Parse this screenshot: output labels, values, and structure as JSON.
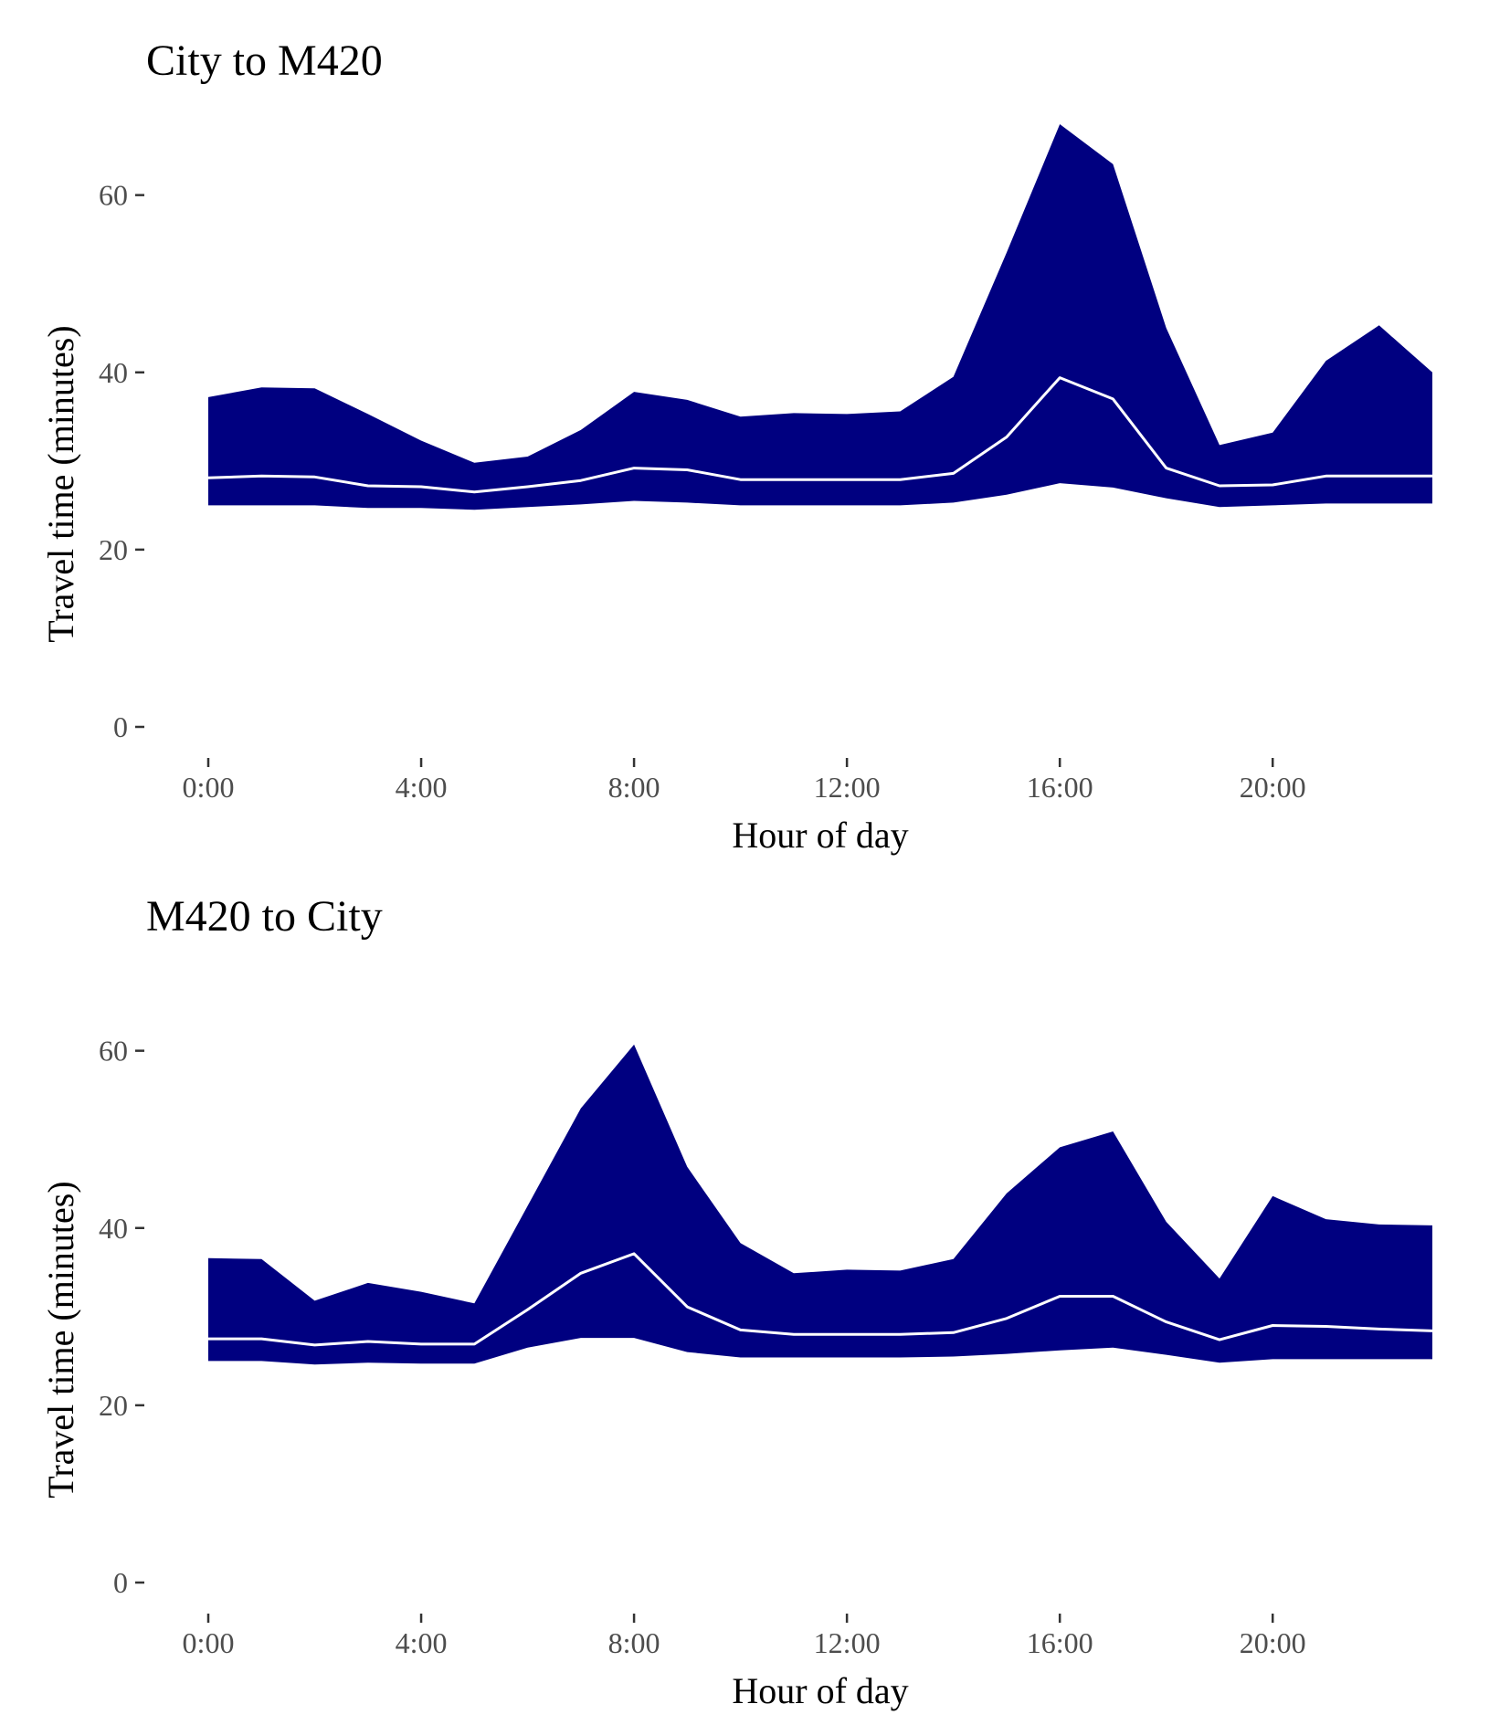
{
  "colors": {
    "band": "#000080",
    "median_line": "#ffffff",
    "tick_text": "#4d4d4d"
  },
  "chart_data": [
    {
      "type": "area",
      "title": "City to M420",
      "xlabel": "Hour of day",
      "ylabel": "Travel time (minutes)",
      "xlim": [
        0,
        23
      ],
      "ylim": [
        0,
        68
      ],
      "grid": false,
      "x": [
        0,
        1,
        2,
        3,
        4,
        5,
        6,
        7,
        8,
        9,
        10,
        11,
        12,
        13,
        14,
        15,
        16,
        17,
        18,
        19,
        20,
        21,
        22,
        23
      ],
      "x_ticks": [
        0,
        4,
        8,
        12,
        16,
        20
      ],
      "x_tick_labels": [
        "0:00",
        "4:00",
        "8:00",
        "12:00",
        "16:00",
        "20:00"
      ],
      "y_ticks": [
        0,
        20,
        40,
        60
      ],
      "y_tick_labels": [
        "0",
        "20",
        "40",
        "60"
      ],
      "series": [
        {
          "role": "lower",
          "values": [
            25.0,
            25.0,
            25.0,
            24.7,
            24.7,
            24.5,
            24.8,
            25.1,
            25.5,
            25.3,
            25.0,
            25.0,
            25.0,
            25.0,
            25.3,
            26.2,
            27.5,
            27.0,
            25.8,
            24.8,
            25.0,
            25.2,
            25.2,
            25.2
          ]
        },
        {
          "role": "upper",
          "values": [
            37.2,
            38.3,
            38.2,
            35.3,
            32.3,
            29.8,
            30.5,
            33.5,
            37.8,
            36.9,
            35.0,
            35.4,
            35.3,
            35.6,
            39.5,
            53.5,
            68.0,
            63.5,
            45.0,
            31.8,
            33.2,
            41.3,
            45.3,
            40.0
          ]
        },
        {
          "role": "median",
          "values": [
            28.1,
            28.3,
            28.2,
            27.2,
            27.1,
            26.5,
            27.1,
            27.8,
            29.2,
            29.0,
            27.9,
            27.9,
            27.9,
            27.9,
            28.6,
            32.7,
            39.4,
            37.0,
            29.2,
            27.2,
            27.3,
            28.3,
            28.3,
            28.3
          ]
        }
      ]
    },
    {
      "type": "area",
      "title": "M420 to City",
      "xlabel": "Hour of day",
      "ylabel": "Travel time (minutes)",
      "xlim": [
        0,
        23
      ],
      "ylim": [
        0,
        68
      ],
      "grid": false,
      "x": [
        0,
        1,
        2,
        3,
        4,
        5,
        6,
        7,
        8,
        9,
        10,
        11,
        12,
        13,
        14,
        15,
        16,
        17,
        18,
        19,
        20,
        21,
        22,
        23
      ],
      "x_ticks": [
        0,
        4,
        8,
        12,
        16,
        20
      ],
      "x_tick_labels": [
        "0:00",
        "4:00",
        "8:00",
        "12:00",
        "16:00",
        "20:00"
      ],
      "y_ticks": [
        0,
        20,
        40,
        60
      ],
      "y_tick_labels": [
        "0",
        "20",
        "40",
        "60"
      ],
      "series": [
        {
          "role": "lower",
          "values": [
            25.0,
            25.0,
            24.6,
            24.8,
            24.7,
            24.7,
            26.5,
            27.6,
            27.6,
            26.0,
            25.4,
            25.4,
            25.4,
            25.4,
            25.5,
            25.8,
            26.2,
            26.5,
            25.7,
            24.8,
            25.2,
            25.2,
            25.2,
            25.2
          ]
        },
        {
          "role": "upper",
          "values": [
            36.6,
            36.5,
            31.8,
            33.8,
            32.8,
            31.5,
            42.5,
            53.5,
            60.7,
            46.9,
            38.3,
            34.9,
            35.3,
            35.2,
            36.5,
            43.9,
            49.1,
            50.9,
            40.7,
            34.3,
            43.6,
            41.0,
            40.4,
            40.3
          ]
        },
        {
          "role": "median",
          "values": [
            27.5,
            27.5,
            26.8,
            27.2,
            26.9,
            26.9,
            30.8,
            34.9,
            37.1,
            31.1,
            28.5,
            28.0,
            28.0,
            28.0,
            28.2,
            29.8,
            32.3,
            32.3,
            29.4,
            27.4,
            29.0,
            28.9,
            28.6,
            28.4
          ]
        }
      ]
    }
  ]
}
